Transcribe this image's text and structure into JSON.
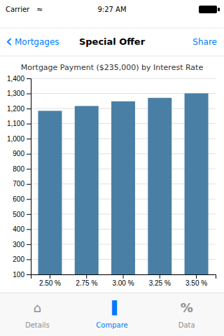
{
  "chart_data": {
    "type": "bar",
    "title": "Mortgage Payment ($235,000) by Interest Rate",
    "categories": [
      "2.50 %",
      "2.75 %",
      "3.00 %",
      "3.25 %",
      "3.50 %"
    ],
    "values": [
      1185,
      1217,
      1248,
      1271,
      1301
    ],
    "color": "#4a7fa5",
    "ylim": [
      100,
      1400
    ],
    "yticks": [
      100,
      200,
      300,
      400,
      500,
      600,
      700,
      800,
      900,
      {
        "value": 1000,
        "label": "1,000"
      },
      {
        "value": 1100,
        "label": "1,100"
      },
      {
        "value": 1200,
        "label": "1,200"
      },
      {
        "value": 1300,
        "label": "1,300"
      },
      {
        "value": 1400,
        "label": "1,400"
      }
    ],
    "grid": true
  },
  "status_bar": {
    "carrier": "Carrier",
    "wifi": "≈",
    "time": "9:27 AM"
  },
  "nav_bar": {
    "back_arrow": "‹",
    "back": "Mortgages",
    "title": "Special Offer",
    "share": "Share",
    "color": "#007aff"
  },
  "tab_bar": {
    "items": [
      {
        "label": "Details",
        "icon": "⌂"
      },
      {
        "label": "Compare",
        "icon": "▐"
      },
      {
        "label": "Data",
        "icon": "%"
      }
    ],
    "active": "Compare",
    "active_color": "#007aff",
    "inactive_color": "#8e8e93"
  }
}
